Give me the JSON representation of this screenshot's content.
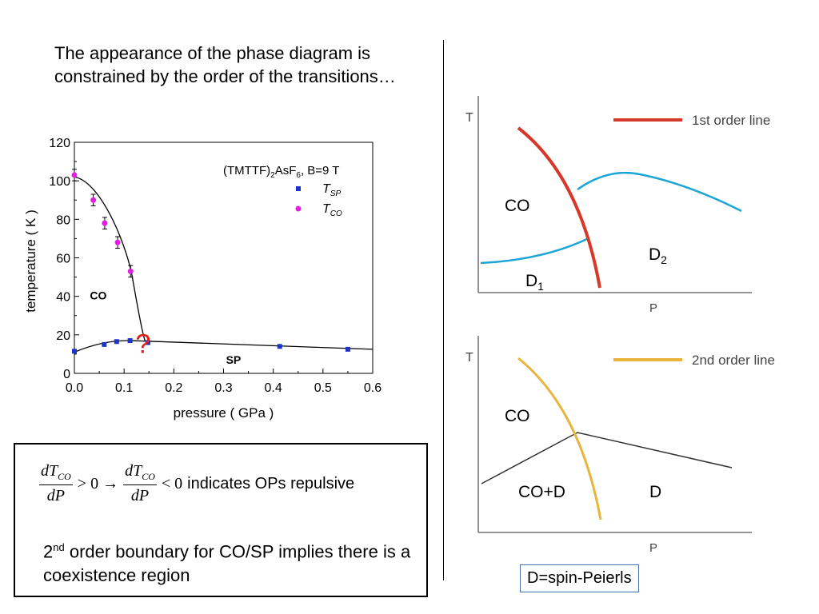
{
  "intro_text": "The appearance of the phase diagram is constrained by the order of the transitions…",
  "chart_data": [
    {
      "type": "scatter",
      "title": "(TMTTF)2AsF6, B=9 T",
      "title_parts": {
        "a": "(TMTTF)",
        "b": "2",
        "c": "AsF",
        "d": "6",
        "e": ", B=9 T"
      },
      "xlabel": "pressure ( GPa )",
      "ylabel": "temperature ( K )",
      "xlim": [
        0.0,
        0.6
      ],
      "ylim": [
        0,
        120
      ],
      "xticks": [
        "0.0",
        "0.1",
        "0.2",
        "0.3",
        "0.4",
        "0.5",
        "0.6"
      ],
      "yticks": [
        "0",
        "20",
        "40",
        "60",
        "80",
        "100",
        "120"
      ],
      "grid": false,
      "legend": "top-right",
      "series": [
        {
          "name": "T_SP",
          "name_main": "T",
          "name_sub": "SP",
          "color": "#1a35c8",
          "marker": "square",
          "x": [
            0.0,
            0.06,
            0.085,
            0.112,
            0.148,
            0.413,
            0.55
          ],
          "y": [
            11.5,
            15,
            16.5,
            17,
            16,
            14,
            12.5
          ]
        },
        {
          "name": "T_CO",
          "name_main": "T",
          "name_sub": "CO",
          "color": "#e020e0",
          "marker": "circle",
          "x": [
            0.0,
            0.038,
            0.061,
            0.087,
            0.113
          ],
          "y": [
            103,
            90,
            78,
            68,
            53
          ],
          "err": [
            3,
            3,
            3,
            3,
            3
          ]
        }
      ],
      "region_labels": [
        "CO",
        "SP"
      ],
      "question_mark": "?",
      "question_color": "#e0201c"
    },
    {
      "type": "line",
      "xlabel": "P",
      "ylabel": "T",
      "legend_label": "1st order line",
      "line_color": "#d6382a",
      "boundary_color": "#1ca6d6",
      "region_labels": [
        "CO",
        "D",
        "D"
      ],
      "region_subs": [
        "",
        "1",
        "2"
      ]
    },
    {
      "type": "line",
      "xlabel": "P",
      "ylabel": "T",
      "legend_label": "2nd order line",
      "line_color": "#e8b43c",
      "boundary_color": "#333333",
      "region_labels": [
        "CO",
        "CO+D",
        "D"
      ]
    }
  ],
  "formula_text": "indicates OPs repulsive",
  "formula": {
    "d": "dT",
    "sub": "CO",
    "p": "dP",
    "gt": "> 0 →",
    "lt": "< 0"
  },
  "note": {
    "pre": "2",
    "sup": "nd",
    "post": " order boundary for CO/SP implies there is a coexistence region"
  },
  "legend_box_label": "D=spin-Peierls"
}
